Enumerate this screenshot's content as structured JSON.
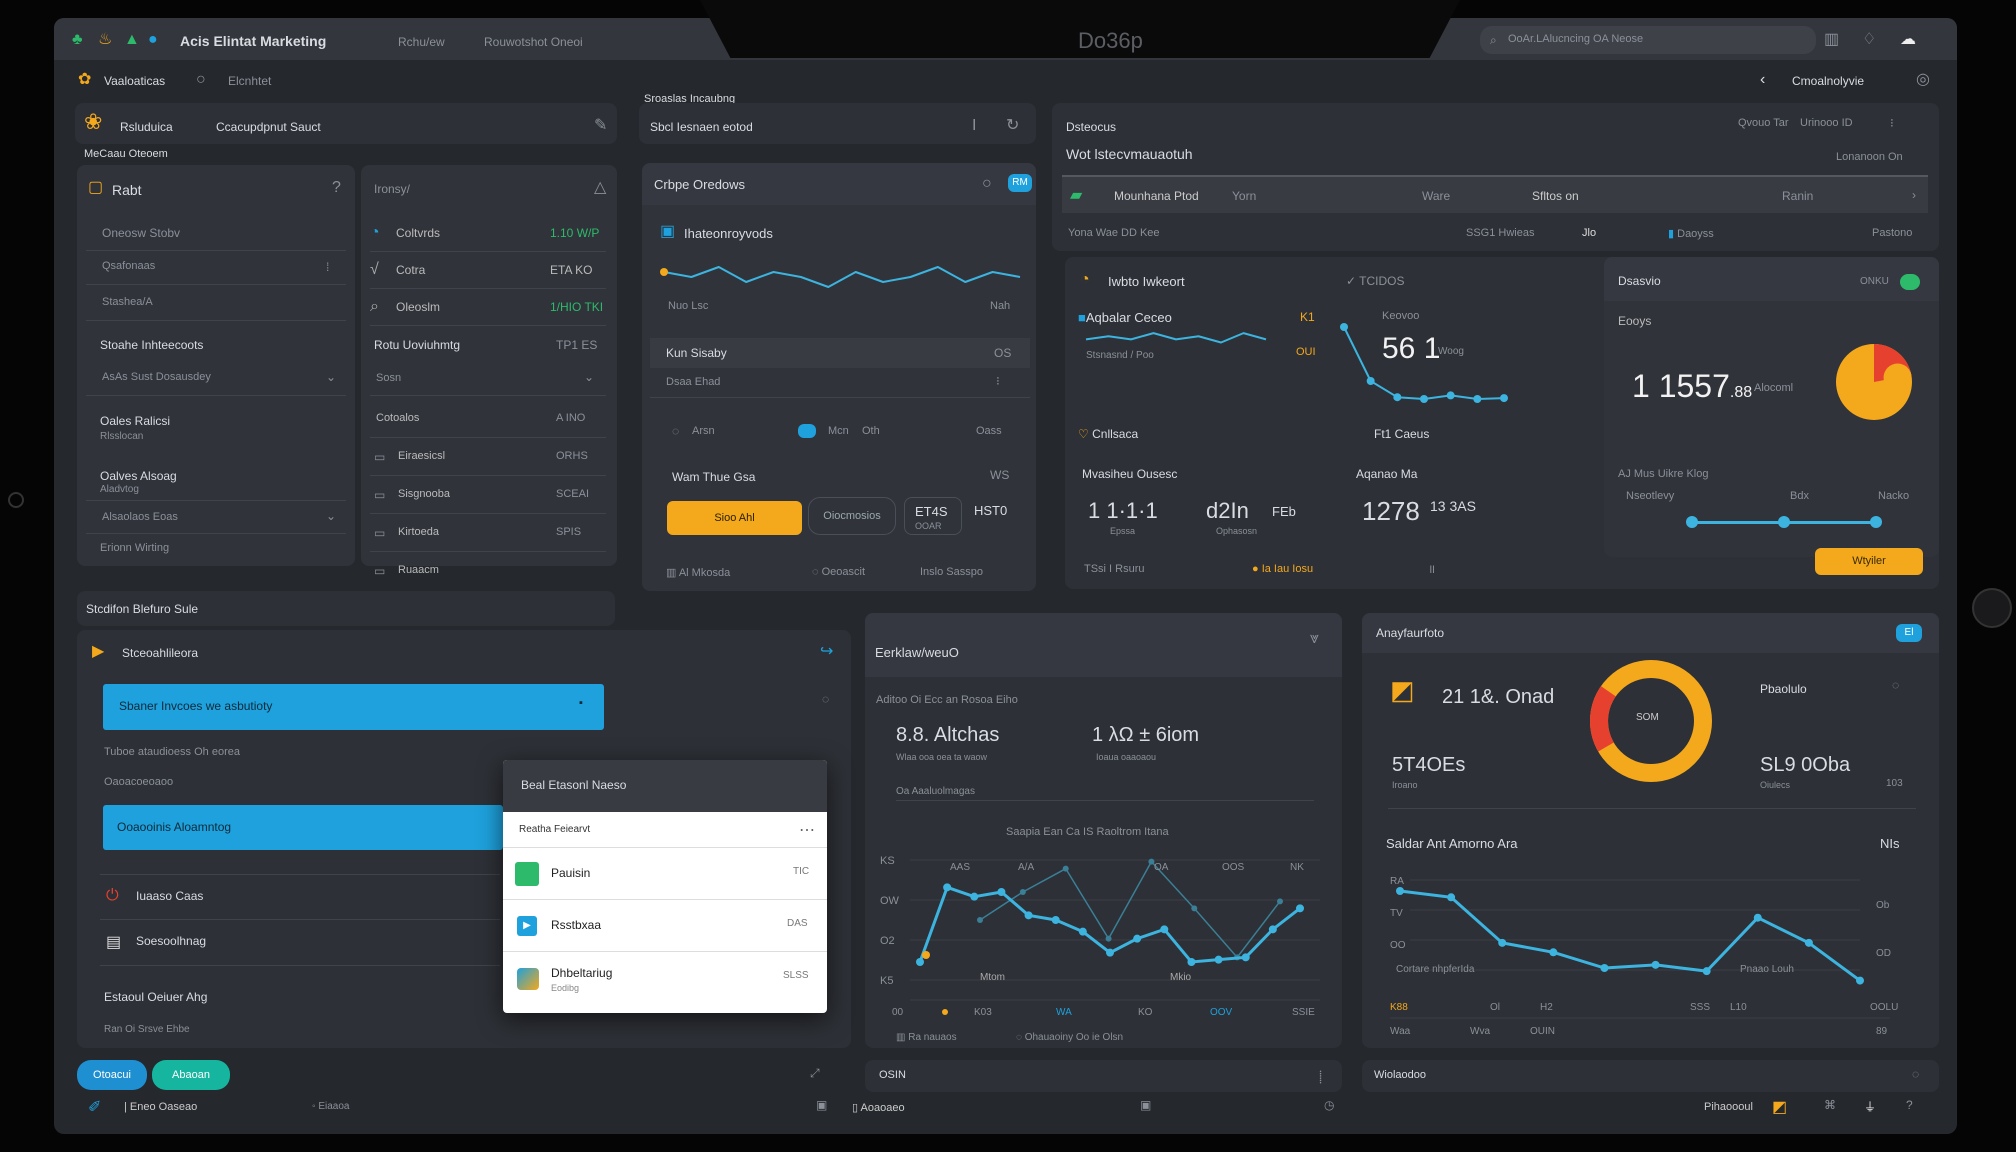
{
  "topbar": {
    "title": "Acis Elintat Marketing",
    "nav": [
      "Rchu/ew",
      "Rouwotshot Oneoi"
    ],
    "brand": "Do36p",
    "search_placeholder": "OoAr.LAlucncing OA Neose"
  },
  "subheader": {
    "workspace": "Vaaloaticas",
    "status": "Elcnhtet",
    "back_label": "Cmoalnolyvie"
  },
  "panel_a": {
    "label1": "Rsluduica",
    "label2": "Ccacupdpnut Sauct",
    "section": "MeCaau Oteoem"
  },
  "card1": {
    "title": "Rabt",
    "items": [
      "Oneosw Stobv",
      "Qsafonaas",
      "Stashea/A"
    ],
    "section2": "Stoahe Inhteecoots",
    "select1": "AsAs Sust Dosausdey",
    "block1_title": "Oales Ralicsi",
    "block1_sub": "Rlsslocan",
    "block2_title": "Oalves Alsoag",
    "block2_sub": "Aladvtog",
    "select2": "Alsaolaos Eoas",
    "footer": "Erionn Wirting"
  },
  "card2": {
    "title": "Ironsy/",
    "items": [
      {
        "label": "Coltvrds",
        "value": "1.10 W/P"
      },
      {
        "label": "Cotra",
        "value": "ETA KO"
      },
      {
        "label": "Oleoslm",
        "value": "1/HIO TKI"
      }
    ],
    "section": "Rotu Uoviuhmtg",
    "section_value": "TP1 ES",
    "select": "Sosn",
    "rows": [
      {
        "label": "Cotoalos",
        "value": "A INO"
      },
      {
        "label": "Eiraesicsl",
        "value": "ORHS"
      },
      {
        "label": "Sisgnooba",
        "value": "SCEAI"
      },
      {
        "label": "Kirtoeda",
        "value": "SPIS"
      },
      {
        "label": "Ruaacm",
        "value": ""
      }
    ]
  },
  "mid": {
    "caption": "Sroaslas Incaubng",
    "header": "Sbcl Iesnaen eotod",
    "card_title": "Crbpe Oredows",
    "badge": "RM",
    "chart_title": "Ihateonroyvods",
    "chart_left": "Nuo Lsc",
    "chart_right": "Nah",
    "row1": "Kun Sisaby",
    "row1_value": "OS",
    "row2": "Dsaa Ehad",
    "stat_label": "Arsn",
    "stat_tag": "Mcn",
    "stat_tag_value": "Oth",
    "stat_value": "Oass",
    "pair_label": "Wam Thue Gsa",
    "pair_value": "WS",
    "primary": "Sioo Ahl",
    "secondary": "Oiocmosios",
    "num1": "ET4S",
    "num1_sub": "OOAR",
    "num2": "HST0",
    "footer": [
      "Al Mkosda",
      "Oeoascit",
      "Inslo Sasspo"
    ],
    "trend": [
      6,
      5,
      7,
      4,
      6,
      5,
      3,
      6,
      4,
      5,
      7,
      4,
      6,
      5
    ]
  },
  "right_top": {
    "title": "Dsteocus",
    "meta": "Qvouo Tar",
    "meta2": "Urinooo ID",
    "subtitle": "Wot lstecvmauaotuh",
    "sub_meta": "Lonanoon On",
    "tabs": [
      "Mounhana Ptod",
      "Yorn",
      "Ware",
      "Sfltos on",
      "Ranin"
    ],
    "row": [
      "Yona Wae DD Kee",
      "SSG1 Hwieas",
      "Jlo",
      "Daoyss",
      "Pastono"
    ]
  },
  "right_mid": {
    "title": "Iwbto Iwkeort",
    "meta": "TCIDOS",
    "spark_title": "Aqbalar Ceceo",
    "spark_badge": "K1",
    "spark_sub": "Stsnasnd / Poo",
    "spark_badge2": "OUI",
    "metric_label": "Keovoo",
    "metric_value": "56 1",
    "metric_unit": "Woog",
    "label_a": "Cnllsaca",
    "label_b": "Ft1 Caeus",
    "sec_title": "Mvasiheu Ousesc",
    "val1": "1 1·1·1",
    "val1_sub": "Epssa",
    "val2": "d2In",
    "val2_unit": "FEb",
    "val2_sub": "Ophasosn",
    "sec2_title": "Aqanao Ma",
    "val3": "1278",
    "val3_unit": "13 3AS",
    "foot1": "TSsi I Rsuru",
    "foot2": "Ia Iau Iosu",
    "spark": [
      5,
      6,
      5,
      7,
      5,
      6,
      4,
      7,
      5
    ],
    "drop": [
      9,
      3,
      1.2,
      1,
      1.4,
      1,
      1.1
    ]
  },
  "gauge_card": {
    "title": "Dsasvio",
    "status": "ONKU",
    "label": "Eooys",
    "value": "1 1557",
    "value_sup": ".88",
    "unit": "Alocoml",
    "pie_fraction": 0.22,
    "slider_title": "AJ Mus Uikre Klog",
    "slider_labels": [
      "Nseotlevy",
      "Bdx",
      "Nacko"
    ],
    "slider_value": 0.5,
    "button": "Wtyiler"
  },
  "bottom_left": {
    "section": "Stcdifon Blefuro Sule",
    "title": "Stceoahlileora",
    "bar1": "Sbaner Invcoes we asbutioty",
    "line1": "Tuboe ataudioess Oh eorea",
    "line2": "Oaoacoeoaoo",
    "bar2": "Ooaooinis Aloamntog",
    "items": [
      "Iuaaso Caas",
      "Soesoolhnag",
      "Estaoul Oeiuer Ahg"
    ],
    "footer": "Ran Oi Srsve Ehbe"
  },
  "popup": {
    "title": "Beal Etasonl Naeso",
    "subtitle": "Reatha Feiearvt",
    "items": [
      {
        "label": "Pauisin",
        "value": "TIC",
        "icon": "green-square-icon"
      },
      {
        "label": "Rsstbxaa",
        "value": "DAS",
        "icon": "play-icon"
      },
      {
        "label": "Dhbeltariug",
        "sub": "Eodibg",
        "value": "SLSS",
        "icon": "app-icon"
      }
    ]
  },
  "bottom_mid": {
    "title": "Eerklaw/weuO",
    "meta": "Aditoo Oi Ecc an Rosoa Eiho",
    "stat1": "8.8. Altchas",
    "stat1_sub": "Wlaa ooa oea ta waow",
    "stat2": "1 λΩ ± 6iom",
    "stat2_sub": "Ioaua oaaoaou",
    "section": "Oa Aaaluolmagas",
    "chart_title": "Saapia Ean Ca IS Raoltrom Itana",
    "yticks": [
      "KS",
      "OW",
      "O2",
      "K5"
    ],
    "point_labels": [
      "AAS",
      "A/A",
      "",
      "OA",
      "OOS",
      "NK"
    ],
    "xlabels": [
      "Mtom",
      "Mkio"
    ],
    "axis": [
      "00",
      "K03",
      "WA",
      "KO",
      "OOV",
      "SSIE"
    ],
    "legend": [
      "Ra nauaos",
      "Ohauaoiny Oo ie Olsn"
    ],
    "series_a": [
      3.2,
      6.4,
      6.0,
      6.2,
      5.2,
      5.0,
      4.5,
      3.6,
      4.2,
      4.6,
      3.2,
      3.3,
      3.4,
      4.6,
      5.5
    ],
    "series_b": [
      5.0,
      6.2,
      7.2,
      4.2,
      7.5,
      5.5,
      3.4,
      5.8
    ]
  },
  "bottom_right": {
    "title": "Anayfaurfoto",
    "badge": "El",
    "stat1": "21 1&. Onad",
    "donut_center": "SOM",
    "donut_fraction": 0.18,
    "side_label": "Pbaolulo",
    "stat2": "5T4OEs",
    "stat2_sub": "Iroano",
    "stat3": "SL9 0Oba",
    "stat3_sub": "Oiulecs",
    "stat3_side": "103",
    "chart_title": "Saldar Ant Amorno Ara",
    "chart_right": "NIs",
    "yleft": [
      "RA",
      "TV",
      "OO"
    ],
    "yright": [
      "Ob",
      "OD"
    ],
    "ann_left": "Cortare nhpferIda",
    "ann_right": "Pnaao Louh",
    "xticks": [
      "K88",
      "Ol",
      "H2",
      "SSS",
      "L10",
      "OOLU"
    ],
    "xticks2": [
      "Waa",
      "Wva",
      "OUIN",
      "89"
    ],
    "series": [
      9.3,
      8.9,
      6.0,
      5.4,
      4.4,
      4.6,
      4.2,
      7.6,
      6.0,
      3.6
    ]
  },
  "bottombar": {
    "pill1": "Otoacui",
    "pill2": "Abaoan",
    "mid_label": "OSIN",
    "right_label": "Wiolaodoo",
    "foot_left": "Eneo Oaseao",
    "foot_mid": "Eiaaoa",
    "foot_mid2": "Aoaoaeo",
    "foot_right": "Pihaoooul"
  },
  "colors": {
    "accent_blue": "#1ea1dc",
    "accent_orange": "#f4a81c",
    "accent_red": "#e5412e",
    "green": "#2dbb6b",
    "line": "#3cb4df"
  }
}
